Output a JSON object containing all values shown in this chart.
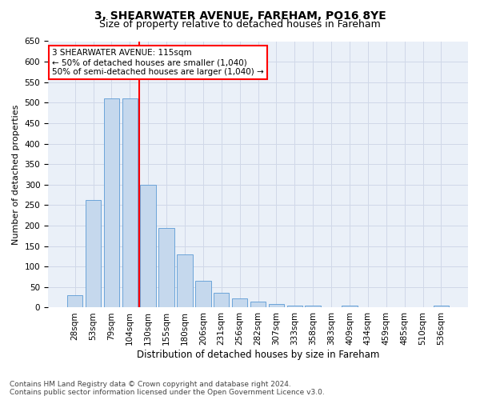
{
  "title1": "3, SHEARWATER AVENUE, FAREHAM, PO16 8YE",
  "title2": "Size of property relative to detached houses in Fareham",
  "xlabel": "Distribution of detached houses by size in Fareham",
  "ylabel": "Number of detached properties",
  "categories": [
    "28sqm",
    "53sqm",
    "79sqm",
    "104sqm",
    "130sqm",
    "155sqm",
    "180sqm",
    "206sqm",
    "231sqm",
    "256sqm",
    "282sqm",
    "307sqm",
    "333sqm",
    "358sqm",
    "383sqm",
    "409sqm",
    "434sqm",
    "459sqm",
    "485sqm",
    "510sqm",
    "536sqm"
  ],
  "values": [
    30,
    263,
    510,
    510,
    300,
    195,
    130,
    65,
    37,
    22,
    14,
    9,
    5,
    4,
    1,
    5,
    1,
    1,
    1,
    1,
    5
  ],
  "bar_color": "#c5d8ed",
  "bar_edge_color": "#5b9bd5",
  "vline_index": 3,
  "vline_color": "red",
  "annotation_line1": "3 SHEARWATER AVENUE: 115sqm",
  "annotation_line2": "← 50% of detached houses are smaller (1,040)",
  "annotation_line3": "50% of semi-detached houses are larger (1,040) →",
  "annotation_box_color": "white",
  "annotation_box_edge_color": "red",
  "ylim": [
    0,
    650
  ],
  "yticks": [
    0,
    50,
    100,
    150,
    200,
    250,
    300,
    350,
    400,
    450,
    500,
    550,
    600,
    650
  ],
  "grid_color": "#d0d8e8",
  "background_color": "#eaf0f8",
  "footnote": "Contains HM Land Registry data © Crown copyright and database right 2024.\nContains public sector information licensed under the Open Government Licence v3.0.",
  "title1_fontsize": 10,
  "title2_fontsize": 9,
  "xlabel_fontsize": 8.5,
  "ylabel_fontsize": 8,
  "tick_fontsize": 7.5,
  "annotation_fontsize": 7.5,
  "footnote_fontsize": 6.5
}
